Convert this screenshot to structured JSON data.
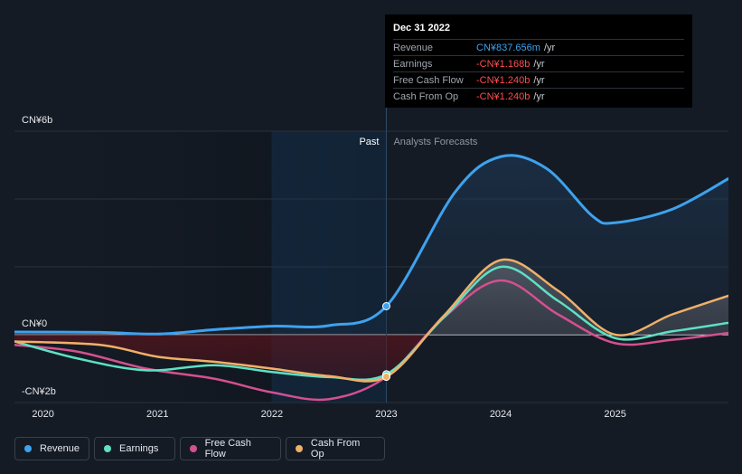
{
  "tooltip": {
    "date": "Dec 31 2022",
    "rows": [
      {
        "label": "Revenue",
        "value": "CN¥837.656m",
        "unit": "/yr",
        "color": "#3ea2ee"
      },
      {
        "label": "Earnings",
        "value": "-CN¥1.168b",
        "unit": "/yr",
        "color": "#ff4d4d"
      },
      {
        "label": "Free Cash Flow",
        "value": "-CN¥1.240b",
        "unit": "/yr",
        "color": "#ff4d4d"
      },
      {
        "label": "Cash From Op",
        "value": "-CN¥1.240b",
        "unit": "/yr",
        "color": "#ff4d4d"
      }
    ]
  },
  "legend": [
    {
      "label": "Revenue",
      "color": "#3ea2ee"
    },
    {
      "label": "Earnings",
      "color": "#5ee0c4"
    },
    {
      "label": "Free Cash Flow",
      "color": "#d4508f"
    },
    {
      "label": "Cash From Op",
      "color": "#f0b068"
    }
  ],
  "chart_data": {
    "type": "line",
    "y_tick_labels": [
      "CN¥6b",
      "CN¥0",
      "-CN¥2b"
    ],
    "x_tick_labels": [
      "2020",
      "2021",
      "2022",
      "2023",
      "2024",
      "2025"
    ],
    "region_labels": {
      "past": "Past",
      "forecast": "Analysts Forecasts"
    },
    "ylim": [
      -2,
      6
    ],
    "xlim": [
      2019.75,
      2025.99
    ],
    "divider_x": 2023.0,
    "series": [
      {
        "name": "Revenue",
        "color": "#3ea2ee",
        "points": [
          [
            2019.75,
            0.08
          ],
          [
            2020.5,
            0.07
          ],
          [
            2021,
            0.02
          ],
          [
            2021.5,
            0.15
          ],
          [
            2022,
            0.25
          ],
          [
            2022.5,
            0.27
          ],
          [
            2023.0,
            0.84
          ],
          [
            2023.6,
            4.2
          ],
          [
            2024.0,
            5.25
          ],
          [
            2024.4,
            4.9
          ],
          [
            2024.8,
            3.5
          ],
          [
            2025.0,
            3.3
          ],
          [
            2025.5,
            3.7
          ],
          [
            2025.99,
            4.6
          ]
        ]
      },
      {
        "name": "Earnings",
        "color": "#5ee0c4",
        "points": [
          [
            2019.75,
            -0.2
          ],
          [
            2020.3,
            -0.7
          ],
          [
            2020.9,
            -1.05
          ],
          [
            2021.5,
            -0.9
          ],
          [
            2022.0,
            -1.1
          ],
          [
            2022.5,
            -1.25
          ],
          [
            2023.0,
            -1.17
          ],
          [
            2023.5,
            0.5
          ],
          [
            2024.0,
            2.0
          ],
          [
            2024.5,
            1.0
          ],
          [
            2025.0,
            -0.1
          ],
          [
            2025.5,
            0.1
          ],
          [
            2025.99,
            0.35
          ]
        ]
      },
      {
        "name": "Free Cash Flow",
        "color": "#d4508f",
        "points": [
          [
            2019.75,
            -0.3
          ],
          [
            2020.3,
            -0.5
          ],
          [
            2020.9,
            -1.0
          ],
          [
            2021.5,
            -1.3
          ],
          [
            2022.0,
            -1.7
          ],
          [
            2022.5,
            -1.9
          ],
          [
            2023.0,
            -1.24
          ],
          [
            2023.5,
            0.5
          ],
          [
            2024.0,
            1.6
          ],
          [
            2024.5,
            0.6
          ],
          [
            2025.0,
            -0.25
          ],
          [
            2025.5,
            -0.15
          ],
          [
            2025.99,
            0.05
          ]
        ]
      },
      {
        "name": "Cash From Op",
        "color": "#f0b068",
        "points": [
          [
            2019.75,
            -0.2
          ],
          [
            2020.5,
            -0.3
          ],
          [
            2021.0,
            -0.65
          ],
          [
            2021.5,
            -0.8
          ],
          [
            2022.0,
            -1.0
          ],
          [
            2022.5,
            -1.22
          ],
          [
            2023.0,
            -1.24
          ],
          [
            2023.5,
            0.55
          ],
          [
            2024.0,
            2.2
          ],
          [
            2024.5,
            1.3
          ],
          [
            2025.0,
            0.0
          ],
          [
            2025.5,
            0.6
          ],
          [
            2025.99,
            1.15
          ]
        ]
      }
    ],
    "highlight_points": {
      "x": 2023.0,
      "values": {
        "Revenue": 0.84,
        "Earnings": -1.168,
        "Free Cash Flow": -1.24,
        "Cash From Op": -1.24
      }
    }
  }
}
